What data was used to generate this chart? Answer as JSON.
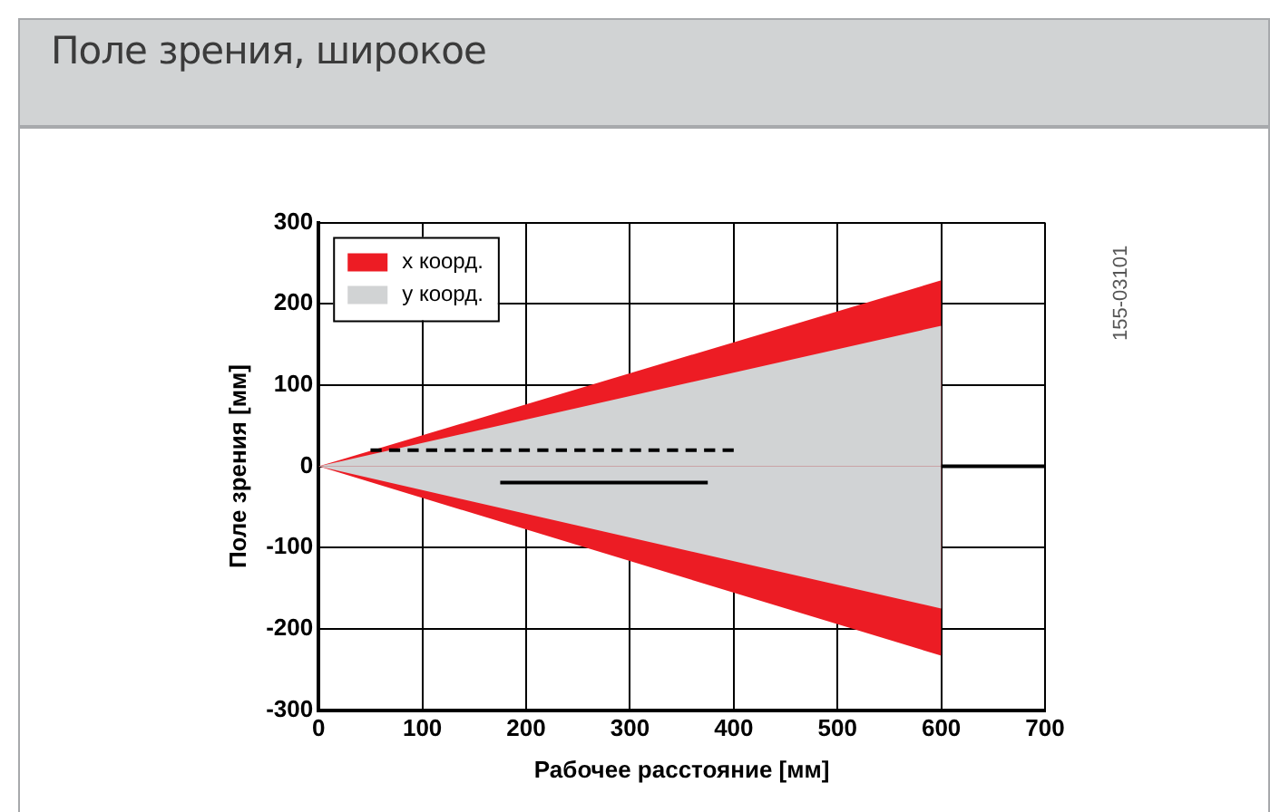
{
  "chart_data": {
    "type": "area",
    "title": "Поле зрения, широкое",
    "xlabel": "Рабочее расстояние [мм]",
    "ylabel": "Поле зрения [мм]",
    "series": [
      {
        "name": "x коорд.",
        "color": "#ed1c24",
        "x": [
          0,
          600
        ],
        "values": [
          0,
          229
        ]
      },
      {
        "name": "y коорд.",
        "color": "#d1d3d4",
        "x": [
          0,
          600
        ],
        "values": [
          0,
          173
        ]
      },
      {
        "color": "#d1d3d5",
        "x": [
          0,
          600
        ],
        "values": [
          0,
          -175
        ]
      },
      {
        "color": "#ec1c24",
        "x": [
          0,
          600
        ],
        "values": [
          0,
          -233
        ]
      },
      {
        "type": "line",
        "color": "#000000",
        "line_style": "dashed",
        "x": [
          50,
          400
        ],
        "values": [
          20,
          20
        ]
      },
      {
        "type": "line",
        "color": "#000000",
        "line_style": "solid",
        "x": [
          175,
          375
        ],
        "values": [
          -20,
          -20
        ]
      },
      {
        "type": "line",
        "color": "#000000",
        "line_style": "solid",
        "x": [
          600,
          700
        ],
        "values": [
          0,
          0
        ]
      }
    ],
    "xlim": [
      0,
      700
    ],
    "xticks": [
      0,
      100,
      200,
      300,
      400,
      500,
      600,
      700
    ],
    "ylim": [
      -300,
      300
    ],
    "yticks": [
      -300,
      -200,
      -100,
      0,
      100,
      200,
      300
    ],
    "grid": true,
    "legend": "top left",
    "marker": "none",
    "annotations": [
      "155-03101"
    ]
  }
}
